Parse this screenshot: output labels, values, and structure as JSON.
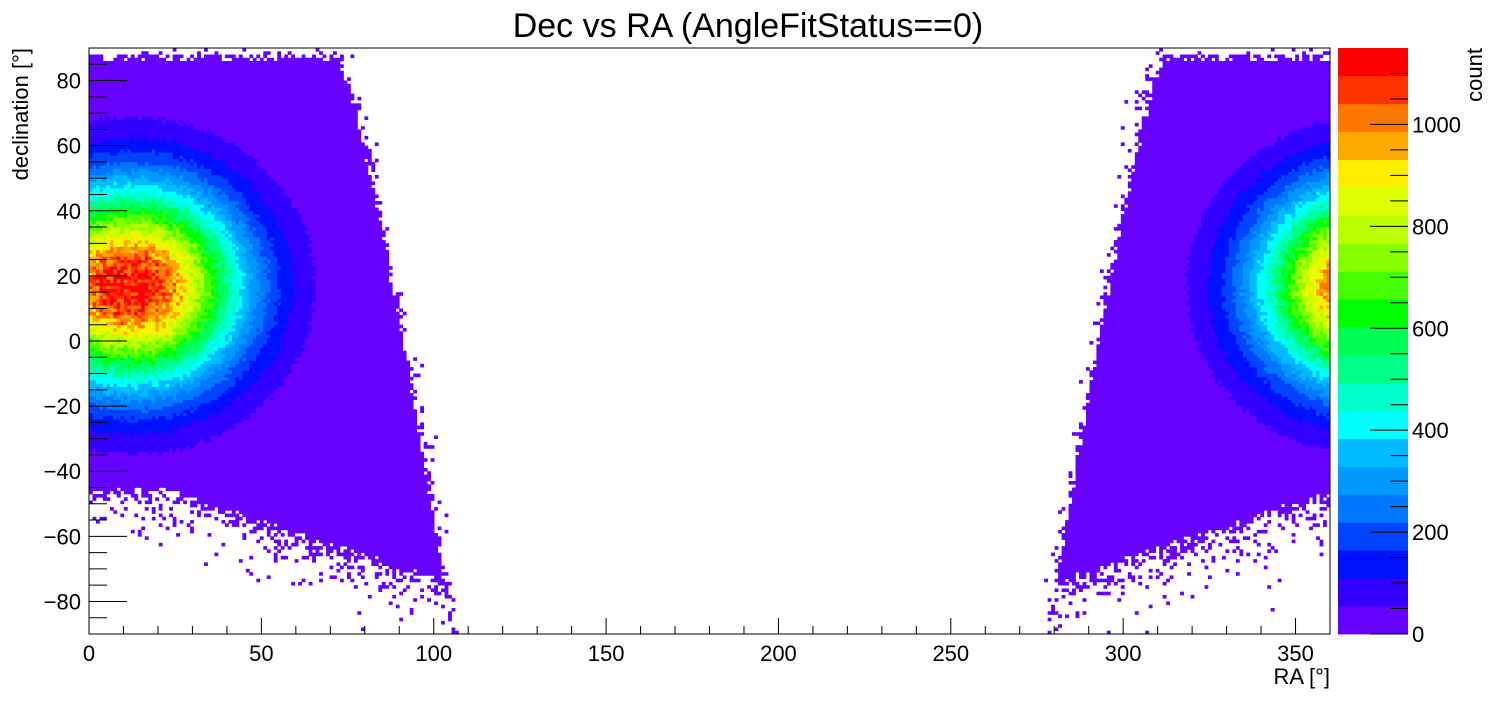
{
  "chart_data": {
    "type": "heatmap",
    "title": "Dec vs RA (AngleFitStatus==0)",
    "xlabel": "RA [°]",
    "ylabel": "declination [°]",
    "zlabel": "count",
    "xlim": [
      0,
      360
    ],
    "ylim": [
      -90,
      90
    ],
    "zlim": [
      0,
      1150
    ],
    "x_ticks": [
      {
        "value": 0,
        "label": "0"
      },
      {
        "value": 50,
        "label": "50"
      },
      {
        "value": 100,
        "label": "100"
      },
      {
        "value": 150,
        "label": "150"
      },
      {
        "value": 200,
        "label": "200"
      },
      {
        "value": 250,
        "label": "250"
      },
      {
        "value": 300,
        "label": "300"
      },
      {
        "value": 350,
        "label": "350"
      }
    ],
    "y_ticks": [
      {
        "value": -80,
        "label": "−80"
      },
      {
        "value": -60,
        "label": "−60"
      },
      {
        "value": -40,
        "label": "−40"
      },
      {
        "value": -20,
        "label": "−20"
      },
      {
        "value": 0,
        "label": "0"
      },
      {
        "value": 20,
        "label": "20"
      },
      {
        "value": 40,
        "label": "40"
      },
      {
        "value": 60,
        "label": "60"
      },
      {
        "value": 80,
        "label": "80"
      }
    ],
    "z_ticks": [
      {
        "value": 0,
        "label": "0"
      },
      {
        "value": 200,
        "label": "200"
      },
      {
        "value": 400,
        "label": "400"
      },
      {
        "value": 600,
        "label": "600"
      },
      {
        "value": 800,
        "label": "800"
      },
      {
        "value": 1000,
        "label": "1000"
      }
    ],
    "palette": [
      "#6600ff",
      "#3300ff",
      "#0011ff",
      "#0044ff",
      "#0077ff",
      "#0099ff",
      "#00bbff",
      "#00ffff",
      "#00ffcc",
      "#00ff88",
      "#00ff55",
      "#00ff00",
      "#44ff00",
      "#88ff00",
      "#bbff00",
      "#ddff00",
      "#ffee00",
      "#ffaa00",
      "#ff7700",
      "#ff3300",
      "#ff0000"
    ],
    "distribution": {
      "hotspot_ra": 12,
      "hotspot_dec": 17,
      "peak_count": 1120,
      "core_sigma_deg": 21,
      "wrap_period_ra": 360
    }
  }
}
